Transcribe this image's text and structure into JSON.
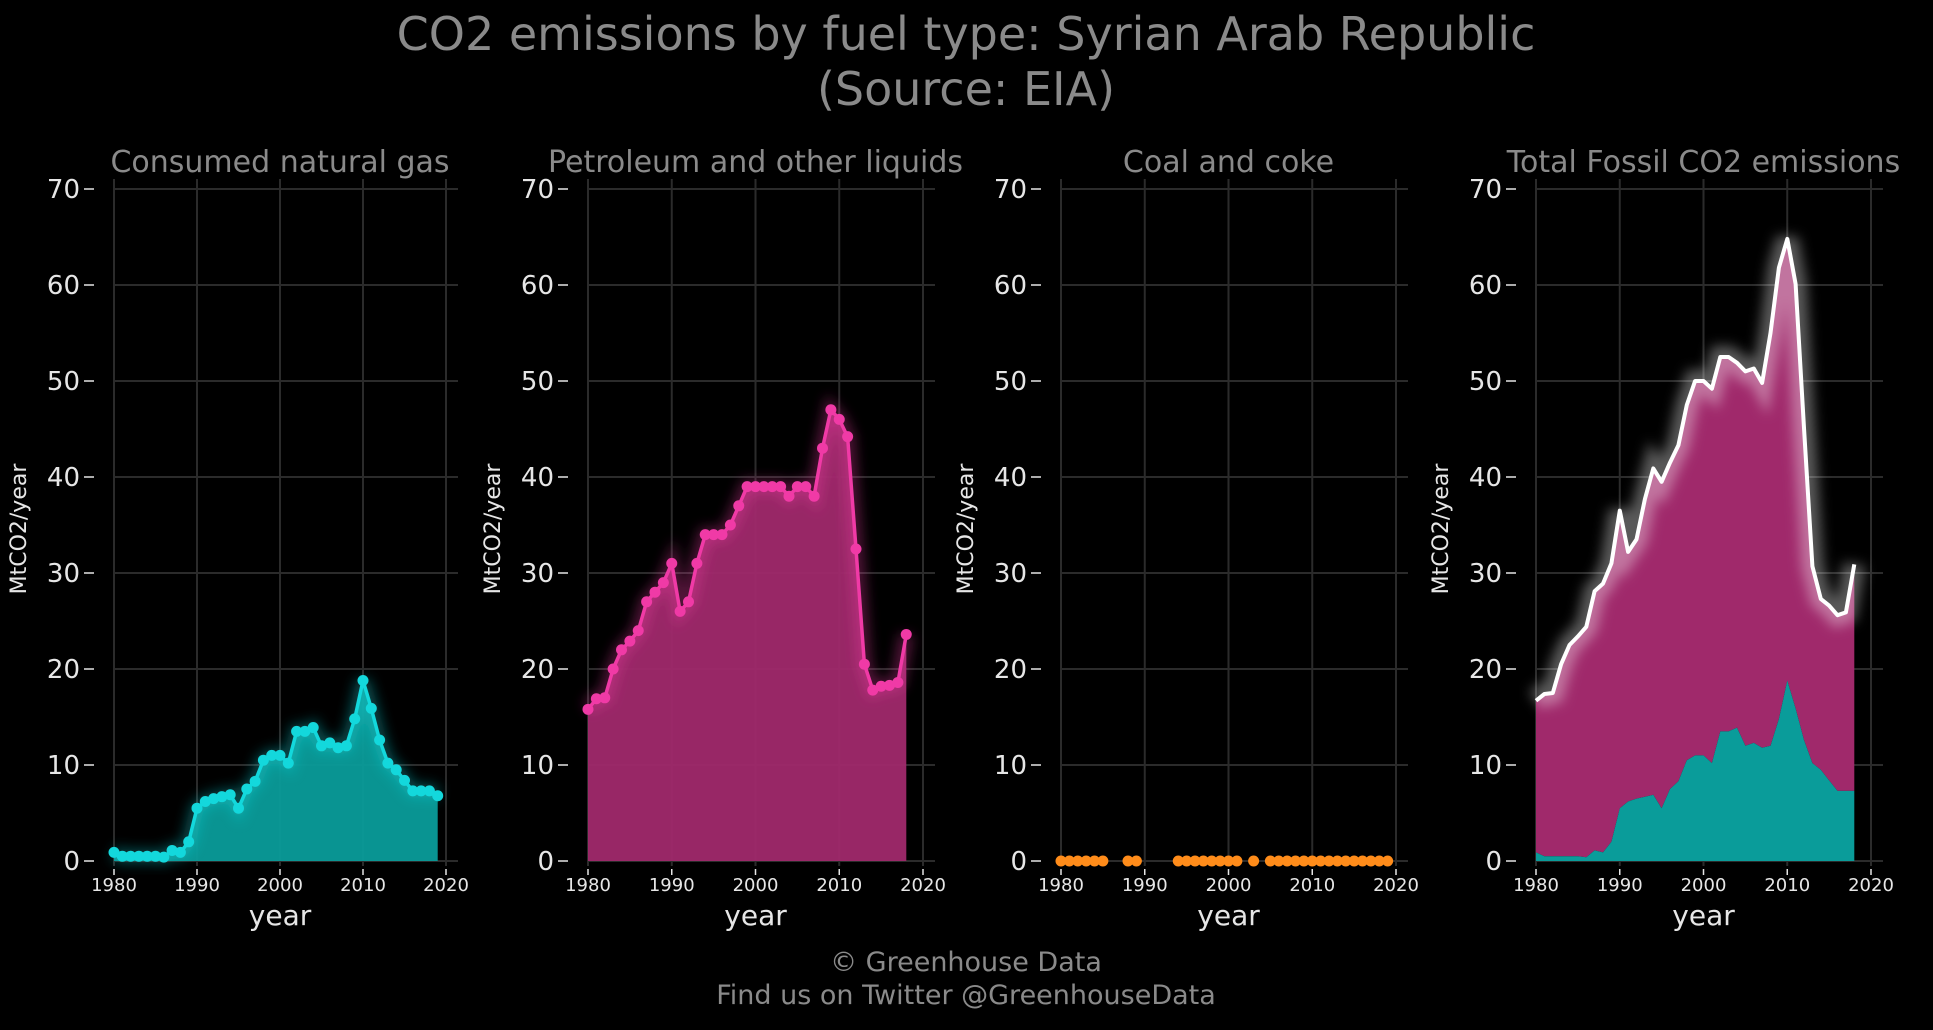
{
  "title_line1": "CO2 emissions by fuel type: Syrian Arab Republic",
  "title_line2": "(Source: EIA)",
  "footer_line1": "© Greenhouse Data",
  "footer_line2": "Find us on Twitter @GreenhouseData",
  "colors": {
    "background": "#000000",
    "title": "#8a8a8a",
    "axis_text": "#e6e6e6",
    "grid": "#2b2b2b",
    "gas": "#13d8dc",
    "gas_fill": "#0a9c9a",
    "petroleum": "#f03aa6",
    "petroleum_fill": "#a0296b",
    "coal": "#ff8c1a",
    "total": "#ffffff"
  },
  "chart_data": [
    {
      "type": "area",
      "title": "Consumed natural gas",
      "xlabel": "year",
      "ylabel": "MtCO2/year",
      "ylim": [
        0,
        70
      ],
      "xlim": [
        1980,
        2020
      ],
      "xticks": [
        1980,
        1990,
        2000,
        2010,
        2020
      ],
      "yticks": [
        0,
        10,
        20,
        30,
        40,
        50,
        60,
        70
      ],
      "grid": true,
      "x": [
        1980,
        1981,
        1982,
        1983,
        1984,
        1985,
        1986,
        1987,
        1988,
        1989,
        1990,
        1991,
        1992,
        1993,
        1994,
        1995,
        1996,
        1997,
        1998,
        1999,
        2000,
        2001,
        2002,
        2003,
        2004,
        2005,
        2006,
        2007,
        2008,
        2009,
        2010,
        2011,
        2012,
        2013,
        2014,
        2015,
        2016,
        2017,
        2018,
        2019
      ],
      "series": [
        {
          "color_key": "gas",
          "values": [
            0.9,
            0.5,
            0.5,
            0.5,
            0.5,
            0.5,
            0.4,
            1.1,
            0.9,
            2.0,
            5.5,
            6.2,
            6.5,
            6.7,
            6.9,
            5.5,
            7.5,
            8.3,
            10.5,
            11.0,
            11.0,
            10.2,
            13.5,
            13.5,
            13.9,
            12.0,
            12.3,
            11.8,
            12.0,
            14.8,
            18.8,
            15.9,
            12.6,
            10.2,
            9.5,
            8.4,
            7.3,
            7.3,
            7.3,
            6.8
          ]
        }
      ]
    },
    {
      "type": "area",
      "title": "Petroleum and other liquids",
      "xlabel": "year",
      "ylabel": "MtCO2/year",
      "ylim": [
        0,
        70
      ],
      "xlim": [
        1980,
        2020
      ],
      "xticks": [
        1980,
        1990,
        2000,
        2010,
        2020
      ],
      "yticks": [
        0,
        10,
        20,
        30,
        40,
        50,
        60,
        70
      ],
      "grid": true,
      "x": [
        1980,
        1981,
        1982,
        1983,
        1984,
        1985,
        1986,
        1987,
        1988,
        1989,
        1990,
        1991,
        1992,
        1993,
        1994,
        1995,
        1996,
        1997,
        1998,
        1999,
        2000,
        2001,
        2002,
        2003,
        2004,
        2005,
        2006,
        2007,
        2008,
        2009,
        2010,
        2011,
        2012,
        2013,
        2014,
        2015,
        2016,
        2017,
        2018
      ],
      "series": [
        {
          "color_key": "petroleum",
          "values": [
            15.8,
            16.9,
            17.0,
            20.0,
            22.0,
            22.9,
            24.0,
            27.0,
            28.0,
            29.0,
            31.0,
            26.0,
            27.0,
            31.0,
            34.0,
            34.0,
            34.0,
            35.0,
            37.0,
            39.0,
            39.0,
            39.0,
            39.0,
            39.0,
            38.0,
            39.0,
            39.0,
            38.0,
            43.0,
            47.0,
            46.0,
            44.2,
            32.5,
            20.5,
            17.8,
            18.2,
            18.3,
            18.6,
            23.6
          ]
        }
      ]
    },
    {
      "type": "scatter",
      "title": "Coal and coke",
      "xlabel": "year",
      "ylabel": "MtCO2/year",
      "ylim": [
        0,
        70
      ],
      "xlim": [
        1980,
        2020
      ],
      "xticks": [
        1980,
        1990,
        2000,
        2010,
        2020
      ],
      "yticks": [
        0,
        10,
        20,
        30,
        40,
        50,
        60,
        70
      ],
      "grid": true,
      "x": [
        1980,
        1981,
        1982,
        1983,
        1984,
        1985,
        1988,
        1989,
        1994,
        1995,
        1996,
        1997,
        1998,
        1999,
        2000,
        2001,
        2003,
        2005,
        2006,
        2007,
        2008,
        2009,
        2010,
        2011,
        2012,
        2013,
        2014,
        2015,
        2016,
        2017,
        2018,
        2019
      ],
      "series": [
        {
          "color_key": "coal",
          "values": [
            0,
            0,
            0,
            0,
            0,
            0,
            0,
            0,
            0,
            0,
            0,
            0,
            0,
            0,
            0,
            0,
            0,
            0,
            0,
            0,
            0,
            0,
            0,
            0,
            0,
            0,
            0,
            0,
            0,
            0,
            0,
            0
          ]
        }
      ]
    },
    {
      "type": "area",
      "title": "Total Fossil CO2 emissions",
      "xlabel": "year",
      "ylabel": "MtCO2/year",
      "ylim": [
        0,
        70
      ],
      "xlim": [
        1980,
        2020
      ],
      "xticks": [
        1980,
        1990,
        2000,
        2010,
        2020
      ],
      "yticks": [
        0,
        10,
        20,
        30,
        40,
        50,
        60,
        70
      ],
      "grid": true,
      "x": [
        1980,
        1981,
        1982,
        1983,
        1984,
        1985,
        1986,
        1987,
        1988,
        1989,
        1990,
        1991,
        1992,
        1993,
        1994,
        1995,
        1996,
        1997,
        1998,
        1999,
        2000,
        2001,
        2002,
        2003,
        2004,
        2005,
        2006,
        2007,
        2008,
        2009,
        2010,
        2011,
        2012,
        2013,
        2014,
        2015,
        2016,
        2017,
        2018
      ],
      "series": [
        {
          "color_key": "gas_fill",
          "stacked": true,
          "values": [
            0.9,
            0.5,
            0.5,
            0.5,
            0.5,
            0.5,
            0.4,
            1.1,
            0.9,
            2.0,
            5.5,
            6.2,
            6.5,
            6.7,
            6.9,
            5.5,
            7.5,
            8.3,
            10.5,
            11.0,
            11.0,
            10.2,
            13.5,
            13.5,
            13.9,
            12.0,
            12.3,
            11.8,
            12.0,
            14.8,
            18.8,
            15.9,
            12.6,
            10.2,
            9.5,
            8.4,
            7.3,
            7.3,
            7.3
          ]
        },
        {
          "color_key": "petroleum_fill",
          "stacked": true,
          "values": [
            15.8,
            16.9,
            17.0,
            20.0,
            22.0,
            22.9,
            24.0,
            27.0,
            28.0,
            29.0,
            31.0,
            26.0,
            27.0,
            31.0,
            34.0,
            34.0,
            34.0,
            35.0,
            37.0,
            39.0,
            39.0,
            39.0,
            39.0,
            39.0,
            38.0,
            39.0,
            39.0,
            38.0,
            43.0,
            47.0,
            46.0,
            44.2,
            32.5,
            20.5,
            17.8,
            18.2,
            18.3,
            18.6,
            23.6
          ]
        },
        {
          "color_key": "total",
          "line": true,
          "values": [
            16.7,
            17.4,
            17.5,
            20.5,
            22.5,
            23.4,
            24.4,
            28.1,
            28.9,
            31.0,
            36.5,
            32.2,
            33.5,
            37.7,
            40.9,
            39.5,
            41.5,
            43.3,
            47.5,
            50.0,
            50.0,
            49.2,
            52.5,
            52.5,
            51.9,
            51.0,
            51.3,
            49.8,
            55.0,
            61.8,
            64.8,
            60.1,
            45.1,
            30.7,
            27.3,
            26.6,
            25.6,
            25.9,
            30.9
          ]
        }
      ]
    }
  ]
}
